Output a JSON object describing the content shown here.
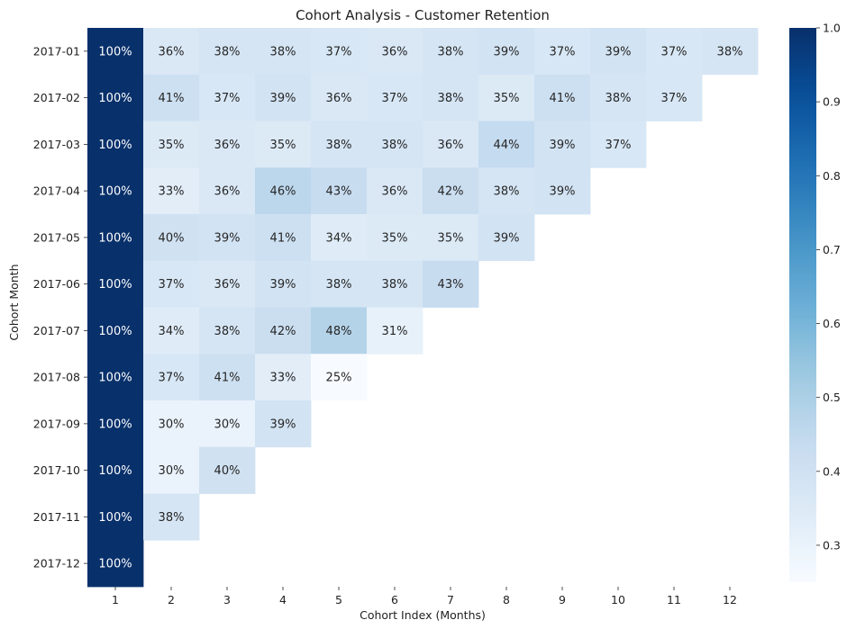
{
  "chart_data": {
    "type": "heatmap",
    "title": "Cohort Analysis - Customer Retention",
    "xlabel": "Cohort Index (Months)",
    "ylabel": "Cohort Month",
    "x_categories": [
      "1",
      "2",
      "3",
      "4",
      "5",
      "6",
      "7",
      "8",
      "9",
      "10",
      "11",
      "12"
    ],
    "y_categories": [
      "2017-01",
      "2017-02",
      "2017-03",
      "2017-04",
      "2017-05",
      "2017-06",
      "2017-07",
      "2017-08",
      "2017-09",
      "2017-10",
      "2017-11",
      "2017-12"
    ],
    "values": [
      [
        1.0,
        0.36,
        0.38,
        0.38,
        0.37,
        0.36,
        0.38,
        0.39,
        0.37,
        0.39,
        0.37,
        0.38
      ],
      [
        1.0,
        0.41,
        0.37,
        0.39,
        0.36,
        0.37,
        0.38,
        0.35,
        0.41,
        0.38,
        0.37,
        null
      ],
      [
        1.0,
        0.35,
        0.36,
        0.35,
        0.38,
        0.38,
        0.36,
        0.44,
        0.39,
        0.37,
        null,
        null
      ],
      [
        1.0,
        0.33,
        0.36,
        0.46,
        0.43,
        0.36,
        0.42,
        0.38,
        0.39,
        null,
        null,
        null
      ],
      [
        1.0,
        0.4,
        0.39,
        0.41,
        0.34,
        0.35,
        0.35,
        0.39,
        null,
        null,
        null,
        null
      ],
      [
        1.0,
        0.37,
        0.36,
        0.39,
        0.38,
        0.38,
        0.43,
        null,
        null,
        null,
        null,
        null
      ],
      [
        1.0,
        0.34,
        0.38,
        0.42,
        0.48,
        0.31,
        null,
        null,
        null,
        null,
        null,
        null
      ],
      [
        1.0,
        0.37,
        0.41,
        0.33,
        0.25,
        null,
        null,
        null,
        null,
        null,
        null,
        null
      ],
      [
        1.0,
        0.3,
        0.3,
        0.39,
        null,
        null,
        null,
        null,
        null,
        null,
        null,
        null
      ],
      [
        1.0,
        0.3,
        0.4,
        null,
        null,
        null,
        null,
        null,
        null,
        null,
        null,
        null
      ],
      [
        1.0,
        0.38,
        null,
        null,
        null,
        null,
        null,
        null,
        null,
        null,
        null,
        null
      ],
      [
        1.0,
        null,
        null,
        null,
        null,
        null,
        null,
        null,
        null,
        null,
        null,
        null
      ]
    ],
    "labels": [
      [
        "100%",
        "36%",
        "38%",
        "38%",
        "37%",
        "36%",
        "38%",
        "39%",
        "37%",
        "39%",
        "37%",
        "38%"
      ],
      [
        "100%",
        "41%",
        "37%",
        "39%",
        "36%",
        "37%",
        "38%",
        "35%",
        "41%",
        "38%",
        "37%",
        ""
      ],
      [
        "100%",
        "35%",
        "36%",
        "35%",
        "38%",
        "38%",
        "36%",
        "44%",
        "39%",
        "37%",
        "",
        ""
      ],
      [
        "100%",
        "33%",
        "36%",
        "46%",
        "43%",
        "36%",
        "42%",
        "38%",
        "39%",
        "",
        "",
        ""
      ],
      [
        "100%",
        "40%",
        "39%",
        "41%",
        "34%",
        "35%",
        "35%",
        "39%",
        "",
        "",
        "",
        ""
      ],
      [
        "100%",
        "37%",
        "36%",
        "39%",
        "38%",
        "38%",
        "43%",
        "",
        "",
        "",
        "",
        ""
      ],
      [
        "100%",
        "34%",
        "38%",
        "42%",
        "48%",
        "31%",
        "",
        "",
        "",
        "",
        "",
        ""
      ],
      [
        "100%",
        "37%",
        "41%",
        "33%",
        "25%",
        "",
        "",
        "",
        "",
        "",
        "",
        ""
      ],
      [
        "100%",
        "30%",
        "30%",
        "39%",
        "",
        "",
        "",
        "",
        "",
        "",
        "",
        ""
      ],
      [
        "100%",
        "30%",
        "40%",
        "",
        "",
        "",
        "",
        "",
        "",
        "",
        "",
        ""
      ],
      [
        "100%",
        "38%",
        "",
        "",
        "",
        "",
        "",
        "",
        "",
        "",
        "",
        ""
      ],
      [
        "100%",
        "",
        "",
        "",
        "",
        "",
        "",
        "",
        "",
        "",
        "",
        ""
      ]
    ],
    "colormap": "Blues",
    "colorbar": {
      "range": [
        0.25,
        1.0
      ],
      "ticks": [
        0.3,
        0.4,
        0.5,
        0.6,
        0.7,
        0.8,
        0.9,
        1.0
      ],
      "tick_labels": [
        "0.3",
        "0.4",
        "0.5",
        "0.6",
        "0.7",
        "0.8",
        "0.9",
        "1.0"
      ]
    },
    "grid": false
  }
}
